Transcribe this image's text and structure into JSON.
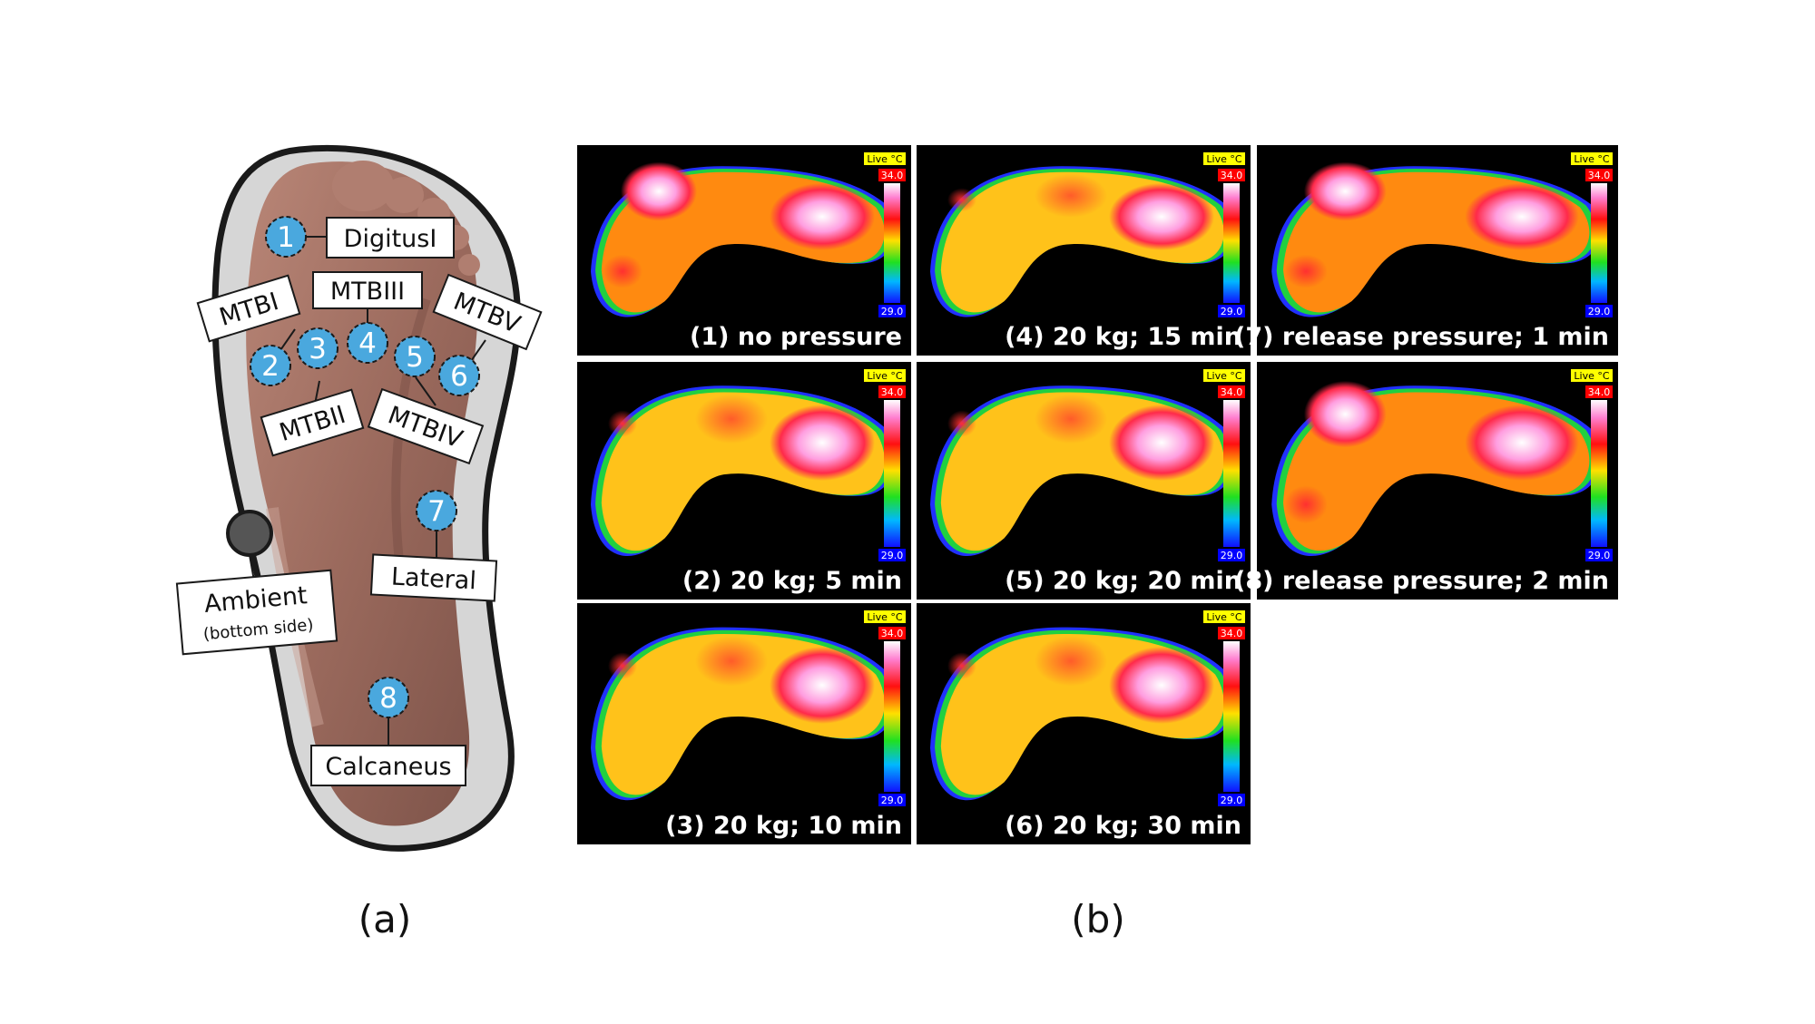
{
  "panel_a": {
    "sensors": [
      {
        "number": "1",
        "label": "DigitusI"
      },
      {
        "number": "2",
        "label": "MTBI"
      },
      {
        "number": "3",
        "label": "MTBII"
      },
      {
        "number": "4",
        "label": "MTBIII"
      },
      {
        "number": "5",
        "label": "MTBIV"
      },
      {
        "number": "6",
        "label": "MTBV"
      },
      {
        "number": "7",
        "label": "Lateral"
      },
      {
        "number": "8",
        "label": "Calcaneus"
      }
    ],
    "ambient": {
      "label": "Ambient",
      "sublabel": "(bottom side)"
    },
    "caption": "(a)"
  },
  "panel_b": {
    "images": [
      {
        "caption": "(1) no pressure"
      },
      {
        "caption": "(2) 20 kg; 5 min"
      },
      {
        "caption": "(3) 20 kg; 10 min"
      },
      {
        "caption": "(4) 20 kg; 15 min"
      },
      {
        "caption": "(5) 20 kg; 20 min"
      },
      {
        "caption": "(6) 20 kg; 30 min"
      },
      {
        "caption": "(7) release pressure; 1 min"
      },
      {
        "caption": "(8) release pressure; 2 min"
      }
    ],
    "scale": {
      "live_label": "Live °C",
      "max": "34.0",
      "min": "29.0"
    },
    "caption": "(b)"
  }
}
